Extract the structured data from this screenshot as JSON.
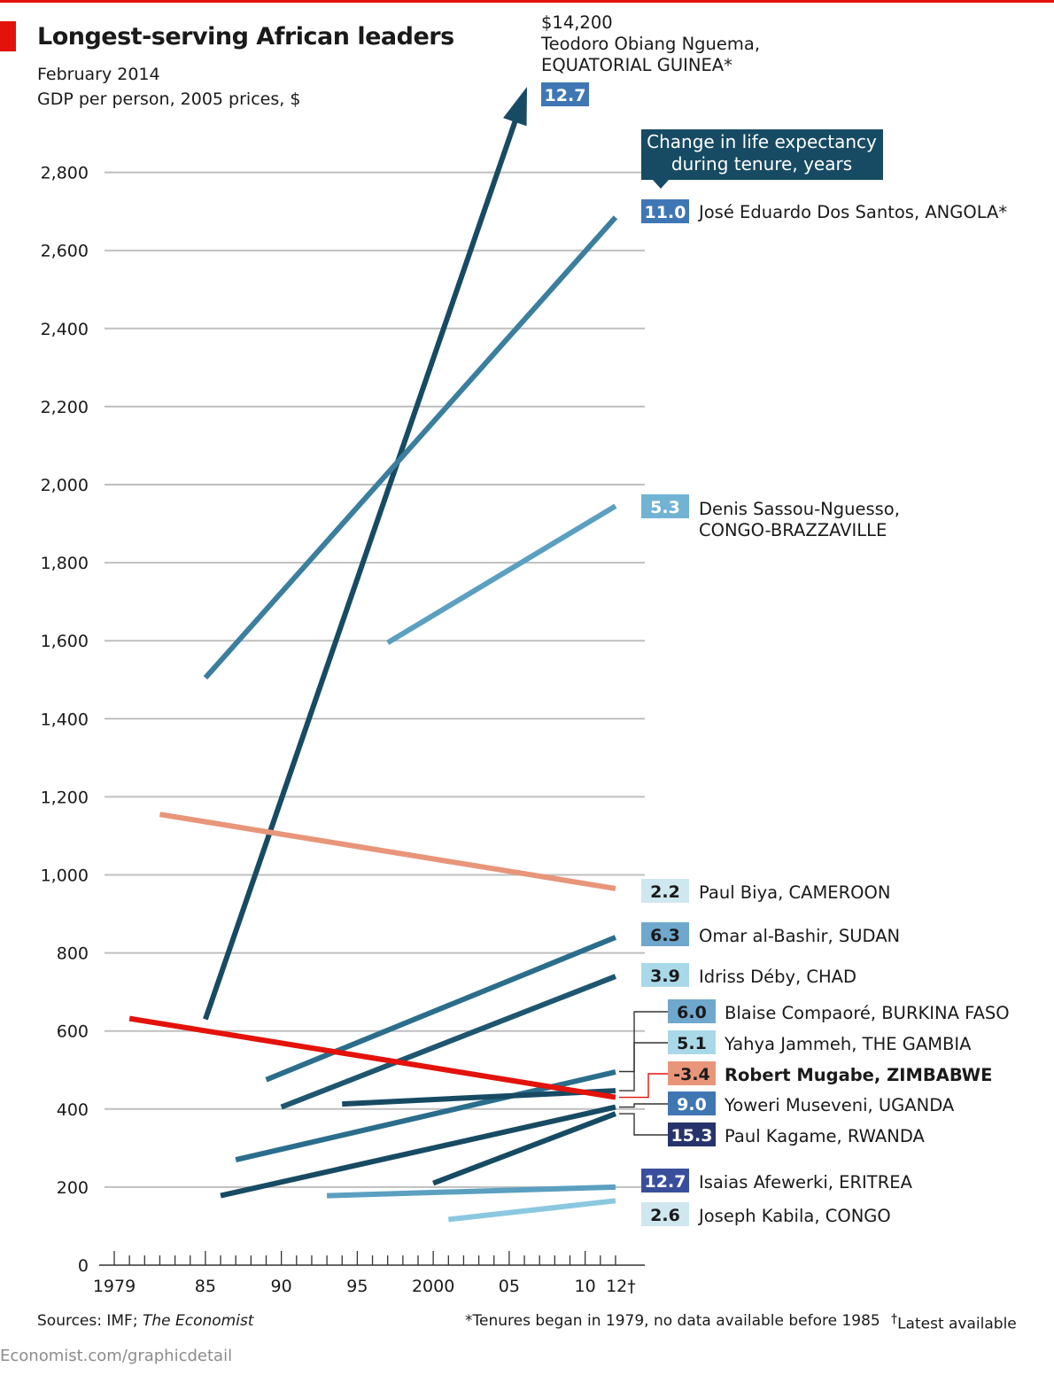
{
  "header": {
    "title": "Longest-serving African leaders",
    "subtitle": "February 2014",
    "y_label": "GDP per person, 2005 prices, $"
  },
  "legend": {
    "line1": "Change in life expectancy",
    "line2": "during tenure, years"
  },
  "footer": {
    "source_prefix": "Sources: IMF; ",
    "source_italic": "The Economist",
    "footnote": "*Tenures began in 1979, no data available before 1985",
    "latest_mark": "†",
    "latest_text": "Latest available",
    "credit": "Economist.com/graphicdetail"
  },
  "chart_data": {
    "type": "line",
    "title": "Longest-serving African leaders",
    "subtitle": "February 2014",
    "ylabel": "GDP per person, 2005 prices, $",
    "ylim": [
      0,
      2900
    ],
    "xlim": [
      1979,
      2012
    ],
    "yticks": [
      0,
      200,
      400,
      600,
      800,
      1000,
      1200,
      1400,
      1600,
      1800,
      2000,
      2200,
      2400,
      2600,
      2800
    ],
    "ytick_labels": [
      "0",
      "200",
      "400",
      "600",
      "800",
      "1,000",
      "1,200",
      "1,400",
      "1,600",
      "1,800",
      "2,000",
      "2,200",
      "2,400",
      "2,600",
      "2,800"
    ],
    "xtick_labels": [
      {
        "x": 1979,
        "label": "1979"
      },
      {
        "x": 1985,
        "label": "85"
      },
      {
        "x": 1990,
        "label": "90"
      },
      {
        "x": 1995,
        "label": "95"
      },
      {
        "x": 2000,
        "label": "2000"
      },
      {
        "x": 2005,
        "label": "05"
      },
      {
        "x": 2010,
        "label": "10"
      },
      {
        "x": 2012,
        "label": "12†"
      }
    ],
    "series": [
      {
        "name": "Teodoro Obiang Nguema",
        "country": "EQUATORIAL GUINEA*",
        "start_year": 1985,
        "start_gdp": 630,
        "end_year": 2012,
        "end_gdp": 14200,
        "end_label": "$14,200",
        "life_change": "12.7",
        "color": "#174b63"
      },
      {
        "name": "José Eduardo Dos Santos",
        "country": "ANGOLA*",
        "start_year": 1985,
        "start_gdp": 1505,
        "end_year": 2012,
        "end_gdp": 2685,
        "life_change": "11.0",
        "color": "#3c7e9e"
      },
      {
        "name": "Denis Sassou-Nguesso",
        "country": "CONGO-BRAZZAVILLE",
        "start_year": 1997,
        "start_gdp": 1595,
        "end_year": 2012,
        "end_gdp": 1945,
        "life_change": "5.3",
        "color": "#5b9fc1"
      },
      {
        "name": "Paul Biya",
        "country": "CAMEROON",
        "start_year": 1982,
        "start_gdp": 1155,
        "end_year": 2012,
        "end_gdp": 965,
        "life_change": "2.2",
        "color": "#e8957a"
      },
      {
        "name": "Omar al-Bashir",
        "country": "SUDAN",
        "start_year": 1989,
        "start_gdp": 475,
        "end_year": 2012,
        "end_gdp": 840,
        "life_change": "6.3",
        "color": "#2b6e8c"
      },
      {
        "name": "Idriss Déby",
        "country": "CHAD",
        "start_year": 1990,
        "start_gdp": 405,
        "end_year": 2012,
        "end_gdp": 740,
        "life_change": "3.9",
        "color": "#1e5670"
      },
      {
        "name": "Blaise Compaoré",
        "country": "BURKINA FASO",
        "start_year": 1987,
        "start_gdp": 270,
        "end_year": 2012,
        "end_gdp": 495,
        "life_change": "6.0",
        "color": "#2b6e8c"
      },
      {
        "name": "Yahya Jammeh",
        "country": "THE GAMBIA",
        "start_year": 1994,
        "start_gdp": 413,
        "end_year": 2012,
        "end_gdp": 447,
        "life_change": "5.1",
        "color": "#174b63"
      },
      {
        "name": "Robert Mugabe",
        "country": "ZIMBABWE",
        "start_year": 1980,
        "start_gdp": 632,
        "end_year": 2012,
        "end_gdp": 430,
        "life_change": "-3.4",
        "color": "#e3120b"
      },
      {
        "name": "Yoweri Museveni",
        "country": "UGANDA",
        "start_year": 1986,
        "start_gdp": 178,
        "end_year": 2012,
        "end_gdp": 405,
        "life_change": "9.0",
        "color": "#174b63"
      },
      {
        "name": "Paul Kagame",
        "country": "RWANDA",
        "start_year": 2000,
        "start_gdp": 210,
        "end_year": 2012,
        "end_gdp": 388,
        "life_change": "15.3",
        "color": "#174b63"
      },
      {
        "name": "Isaias Afewerki",
        "country": "ERITREA",
        "start_year": 1993,
        "start_gdp": 178,
        "end_year": 2012,
        "end_gdp": 200,
        "life_change": "12.7",
        "color": "#5b9fc1"
      },
      {
        "name": "Joseph Kabila",
        "country": "CONGO",
        "start_year": 2001,
        "start_gdp": 117,
        "end_year": 2012,
        "end_gdp": 165,
        "life_change": "2.6",
        "color": "#8ac8e0"
      }
    ]
  }
}
